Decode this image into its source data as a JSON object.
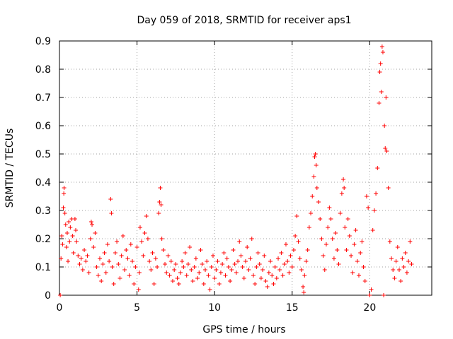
{
  "chart_data": {
    "type": "scatter",
    "title": "Day 059 of 2018, SRMTID for receiver aps1",
    "xlabel": "GPS time / hours",
    "ylabel": "SRMTID / TECUs",
    "xlim": [
      0,
      24
    ],
    "ylim": [
      0,
      0.9
    ],
    "xticks": [
      0,
      5,
      10,
      15,
      20
    ],
    "yticks": [
      0,
      0.1,
      0.2,
      0.3,
      0.4,
      0.5,
      0.6,
      0.7,
      0.8,
      0.9
    ],
    "xtick_labels": [
      "0",
      "5",
      "10",
      "15",
      "20"
    ],
    "ytick_labels": [
      "0",
      "0.1",
      "0.2",
      "0.3",
      "0.4",
      "0.5",
      "0.6",
      "0.7",
      "0.8",
      "0.9"
    ],
    "grid": true,
    "marker": "+",
    "color": "#ff0000",
    "series": [
      {
        "name": "SRMTID",
        "points": [
          [
            0.05,
            0.0
          ],
          [
            0.1,
            0.13
          ],
          [
            0.15,
            0.21
          ],
          [
            0.2,
            0.18
          ],
          [
            0.25,
            0.31
          ],
          [
            0.28,
            0.36
          ],
          [
            0.3,
            0.38
          ],
          [
            0.35,
            0.29
          ],
          [
            0.4,
            0.25
          ],
          [
            0.45,
            0.17
          ],
          [
            0.5,
            0.22
          ],
          [
            0.55,
            0.12
          ],
          [
            0.6,
            0.26
          ],
          [
            0.65,
            0.19
          ],
          [
            0.7,
            0.24
          ],
          [
            0.8,
            0.27
          ],
          [
            0.85,
            0.21
          ],
          [
            0.9,
            0.15
          ],
          [
            1.0,
            0.27
          ],
          [
            1.05,
            0.23
          ],
          [
            1.1,
            0.19
          ],
          [
            1.2,
            0.14
          ],
          [
            1.3,
            0.11
          ],
          [
            1.4,
            0.13
          ],
          [
            1.5,
            0.09
          ],
          [
            1.6,
            0.16
          ],
          [
            1.7,
            0.12
          ],
          [
            1.8,
            0.14
          ],
          [
            1.9,
            0.08
          ],
          [
            2.0,
            0.2
          ],
          [
            2.05,
            0.26
          ],
          [
            2.1,
            0.25
          ],
          [
            2.2,
            0.17
          ],
          [
            2.3,
            0.22
          ],
          [
            2.4,
            0.1
          ],
          [
            2.5,
            0.07
          ],
          [
            2.6,
            0.13
          ],
          [
            2.7,
            0.05
          ],
          [
            2.8,
            0.11
          ],
          [
            2.9,
            0.15
          ],
          [
            3.0,
            0.08
          ],
          [
            3.1,
            0.18
          ],
          [
            3.2,
            0.12
          ],
          [
            3.3,
            0.34
          ],
          [
            3.35,
            0.29
          ],
          [
            3.4,
            0.1
          ],
          [
            3.5,
            0.04
          ],
          [
            3.6,
            0.15
          ],
          [
            3.7,
            0.19
          ],
          [
            3.8,
            0.11
          ],
          [
            3.9,
            0.06
          ],
          [
            4.0,
            0.14
          ],
          [
            4.1,
            0.21
          ],
          [
            4.2,
            0.09
          ],
          [
            4.3,
            0.16
          ],
          [
            4.4,
            0.13
          ],
          [
            4.5,
            0.07
          ],
          [
            4.6,
            0.18
          ],
          [
            4.7,
            0.12
          ],
          [
            4.8,
            0.04
          ],
          [
            4.9,
            0.1
          ],
          [
            5.0,
            0.17
          ],
          [
            5.1,
            0.02
          ],
          [
            5.15,
            0.08
          ],
          [
            5.2,
            0.24
          ],
          [
            5.3,
            0.19
          ],
          [
            5.4,
            0.14
          ],
          [
            5.5,
            0.22
          ],
          [
            5.6,
            0.28
          ],
          [
            5.7,
            0.2
          ],
          [
            5.8,
            0.12
          ],
          [
            5.9,
            0.09
          ],
          [
            6.0,
            0.15
          ],
          [
            6.1,
            0.04
          ],
          [
            6.2,
            0.13
          ],
          [
            6.3,
            0.1
          ],
          [
            6.4,
            0.29
          ],
          [
            6.45,
            0.33
          ],
          [
            6.5,
            0.38
          ],
          [
            6.55,
            0.32
          ],
          [
            6.6,
            0.2
          ],
          [
            6.7,
            0.16
          ],
          [
            6.8,
            0.11
          ],
          [
            6.9,
            0.08
          ],
          [
            7.0,
            0.14
          ],
          [
            7.1,
            0.07
          ],
          [
            7.2,
            0.12
          ],
          [
            7.3,
            0.05
          ],
          [
            7.4,
            0.09
          ],
          [
            7.5,
            0.11
          ],
          [
            7.6,
            0.06
          ],
          [
            7.7,
            0.04
          ],
          [
            7.8,
            0.08
          ],
          [
            7.9,
            0.12
          ],
          [
            8.0,
            0.1
          ],
          [
            8.1,
            0.15
          ],
          [
            8.2,
            0.07
          ],
          [
            8.3,
            0.11
          ],
          [
            8.4,
            0.17
          ],
          [
            8.5,
            0.09
          ],
          [
            8.6,
            0.05
          ],
          [
            8.7,
            0.1
          ],
          [
            8.8,
            0.13
          ],
          [
            8.9,
            0.06
          ],
          [
            9.0,
            0.08
          ],
          [
            9.1,
            0.16
          ],
          [
            9.2,
            0.11
          ],
          [
            9.3,
            0.04
          ],
          [
            9.4,
            0.09
          ],
          [
            9.5,
            0.12
          ],
          [
            9.6,
            0.07
          ],
          [
            9.7,
            0.02
          ],
          [
            9.8,
            0.1
          ],
          [
            9.9,
            0.14
          ],
          [
            10.0,
            0.06
          ],
          [
            10.1,
            0.09
          ],
          [
            10.2,
            0.12
          ],
          [
            10.3,
            0.04
          ],
          [
            10.4,
            0.08
          ],
          [
            10.5,
            0.11
          ],
          [
            10.6,
            0.15
          ],
          [
            10.7,
            0.07
          ],
          [
            10.8,
            0.13
          ],
          [
            10.9,
            0.1
          ],
          [
            11.0,
            0.05
          ],
          [
            11.1,
            0.09
          ],
          [
            11.2,
            0.16
          ],
          [
            11.3,
            0.11
          ],
          [
            11.4,
            0.08
          ],
          [
            11.5,
            0.12
          ],
          [
            11.6,
            0.19
          ],
          [
            11.7,
            0.14
          ],
          [
            11.8,
            0.1
          ],
          [
            11.9,
            0.06
          ],
          [
            12.0,
            0.12
          ],
          [
            12.1,
            0.17
          ],
          [
            12.2,
            0.09
          ],
          [
            12.3,
            0.13
          ],
          [
            12.4,
            0.2
          ],
          [
            12.5,
            0.07
          ],
          [
            12.6,
            0.04
          ],
          [
            12.7,
            0.1
          ],
          [
            12.8,
            0.15
          ],
          [
            12.9,
            0.11
          ],
          [
            13.0,
            0.06
          ],
          [
            13.1,
            0.09
          ],
          [
            13.2,
            0.14
          ],
          [
            13.3,
            0.05
          ],
          [
            13.4,
            0.03
          ],
          [
            13.5,
            0.08
          ],
          [
            13.6,
            0.12
          ],
          [
            13.7,
            0.07
          ],
          [
            13.8,
            0.04
          ],
          [
            13.9,
            0.1
          ],
          [
            14.0,
            0.06
          ],
          [
            14.1,
            0.13
          ],
          [
            14.2,
            0.09
          ],
          [
            14.3,
            0.15
          ],
          [
            14.4,
            0.07
          ],
          [
            14.5,
            0.11
          ],
          [
            14.6,
            0.18
          ],
          [
            14.7,
            0.12
          ],
          [
            14.8,
            0.08
          ],
          [
            14.9,
            0.14
          ],
          [
            15.0,
            0.1
          ],
          [
            15.1,
            0.16
          ],
          [
            15.2,
            0.21
          ],
          [
            15.3,
            0.28
          ],
          [
            15.4,
            0.19
          ],
          [
            15.5,
            0.13
          ],
          [
            15.6,
            0.09
          ],
          [
            15.7,
            0.03
          ],
          [
            15.75,
            0.01
          ],
          [
            15.8,
            0.07
          ],
          [
            15.9,
            0.12
          ],
          [
            16.0,
            0.16
          ],
          [
            16.1,
            0.24
          ],
          [
            16.2,
            0.29
          ],
          [
            16.3,
            0.35
          ],
          [
            16.4,
            0.42
          ],
          [
            16.45,
            0.49
          ],
          [
            16.5,
            0.5
          ],
          [
            16.55,
            0.46
          ],
          [
            16.6,
            0.38
          ],
          [
            16.7,
            0.33
          ],
          [
            16.8,
            0.27
          ],
          [
            16.9,
            0.2
          ],
          [
            17.0,
            0.14
          ],
          [
            17.1,
            0.09
          ],
          [
            17.2,
            0.18
          ],
          [
            17.3,
            0.24
          ],
          [
            17.4,
            0.31
          ],
          [
            17.5,
            0.27
          ],
          [
            17.6,
            0.2
          ],
          [
            17.7,
            0.13
          ],
          [
            17.8,
            0.22
          ],
          [
            17.9,
            0.16
          ],
          [
            18.0,
            0.11
          ],
          [
            18.1,
            0.29
          ],
          [
            18.2,
            0.36
          ],
          [
            18.3,
            0.41
          ],
          [
            18.35,
            0.38
          ],
          [
            18.4,
            0.24
          ],
          [
            18.5,
            0.16
          ],
          [
            18.6,
            0.27
          ],
          [
            18.7,
            0.21
          ],
          [
            18.8,
            0.14
          ],
          [
            18.9,
            0.08
          ],
          [
            19.0,
            0.18
          ],
          [
            19.1,
            0.23
          ],
          [
            19.2,
            0.12
          ],
          [
            19.3,
            0.07
          ],
          [
            19.4,
            0.15
          ],
          [
            19.5,
            0.19
          ],
          [
            19.6,
            0.1
          ],
          [
            19.7,
            0.05
          ],
          [
            19.8,
            0.35
          ],
          [
            19.9,
            0.31
          ],
          [
            20.0,
            0.0
          ],
          [
            20.1,
            0.02
          ],
          [
            20.2,
            0.23
          ],
          [
            20.3,
            0.3
          ],
          [
            20.4,
            0.36
          ],
          [
            20.5,
            0.45
          ],
          [
            20.6,
            0.68
          ],
          [
            20.65,
            0.79
          ],
          [
            20.7,
            0.82
          ],
          [
            20.75,
            0.72
          ],
          [
            20.8,
            0.88
          ],
          [
            20.85,
            0.86
          ],
          [
            20.9,
            0.0
          ],
          [
            20.95,
            0.6
          ],
          [
            21.0,
            0.52
          ],
          [
            21.05,
            0.7
          ],
          [
            21.1,
            0.51
          ],
          [
            21.2,
            0.38
          ],
          [
            21.3,
            0.19
          ],
          [
            21.4,
            0.13
          ],
          [
            21.5,
            0.09
          ],
          [
            21.6,
            0.06
          ],
          [
            21.7,
            0.12
          ],
          [
            21.8,
            0.17
          ],
          [
            21.9,
            0.09
          ],
          [
            22.0,
            0.05
          ],
          [
            22.1,
            0.13
          ],
          [
            22.2,
            0.1
          ],
          [
            22.3,
            0.15
          ],
          [
            22.4,
            0.08
          ],
          [
            22.5,
            0.12
          ],
          [
            22.6,
            0.19
          ],
          [
            22.7,
            0.11
          ]
        ]
      }
    ]
  }
}
